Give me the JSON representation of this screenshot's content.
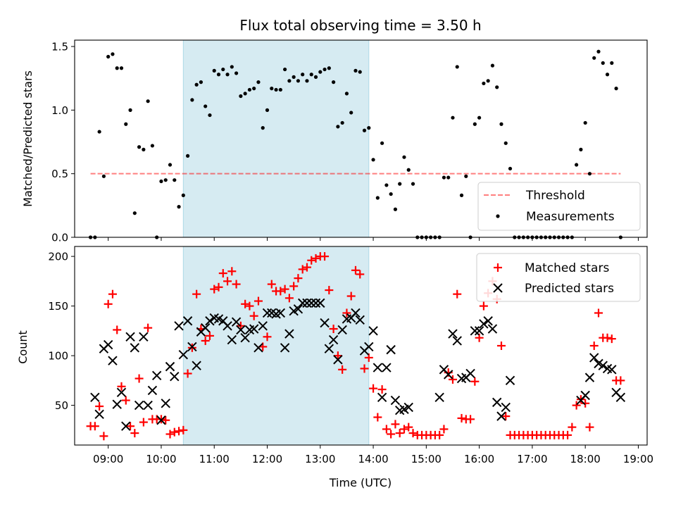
{
  "chart_data": [
    {
      "type": "scatter",
      "title": "Flux total observing time = 3.50 h",
      "xlabel": "",
      "ylabel": "Matched/Predicted stars",
      "xlim": [
        "08:22",
        "19:10"
      ],
      "ylim": [
        0,
        1.55
      ],
      "yticks": [
        0.0,
        0.5,
        1.0,
        1.5
      ],
      "ytick_labels": [
        "0.0",
        "0.5",
        "1.0",
        "1.5"
      ],
      "shaded_interval": [
        "10:25",
        "13:55"
      ],
      "legend": {
        "placement": "lower-right",
        "entries": [
          "Threshold",
          "Measurements"
        ]
      },
      "threshold": {
        "name": "Threshold",
        "x": [
          "08:40",
          "18:40"
        ],
        "y": 0.5
      },
      "series": [
        {
          "name": "Measurements",
          "x": [
            "08:40",
            "08:45",
            "08:50",
            "08:55",
            "09:00",
            "09:05",
            "09:10",
            "09:15",
            "09:20",
            "09:25",
            "09:30",
            "09:35",
            "09:40",
            "09:45",
            "09:50",
            "09:55",
            "10:00",
            "10:05",
            "10:10",
            "10:15",
            "10:20",
            "10:25",
            "10:30",
            "10:35",
            "10:40",
            "10:45",
            "10:50",
            "10:55",
            "11:00",
            "11:05",
            "11:10",
            "11:15",
            "11:20",
            "11:25",
            "11:30",
            "11:35",
            "11:40",
            "11:45",
            "11:50",
            "11:55",
            "12:00",
            "12:05",
            "12:10",
            "12:15",
            "12:20",
            "12:25",
            "12:30",
            "12:35",
            "12:40",
            "12:45",
            "12:50",
            "12:55",
            "13:00",
            "13:05",
            "13:10",
            "13:15",
            "13:20",
            "13:25",
            "13:30",
            "13:35",
            "13:40",
            "13:45",
            "13:50",
            "13:55",
            "14:00",
            "14:05",
            "14:10",
            "14:15",
            "14:20",
            "14:25",
            "14:30",
            "14:35",
            "14:40",
            "14:45",
            "14:50",
            "14:55",
            "15:00",
            "15:05",
            "15:10",
            "15:15",
            "15:20",
            "15:25",
            "15:30",
            "15:35",
            "15:40",
            "15:45",
            "15:50",
            "15:55",
            "16:00",
            "16:05",
            "16:10",
            "16:15",
            "16:20",
            "16:25",
            "16:30",
            "16:35",
            "16:40",
            "16:45",
            "16:50",
            "16:55",
            "17:00",
            "17:05",
            "17:10",
            "17:15",
            "17:20",
            "17:25",
            "17:30",
            "17:35",
            "17:40",
            "17:45",
            "17:50",
            "17:55",
            "18:00",
            "18:05",
            "18:10",
            "18:15",
            "18:20",
            "18:25",
            "18:30",
            "18:35",
            "18:40"
          ],
          "y": [
            0.0,
            0.0,
            0.83,
            0.48,
            1.42,
            1.44,
            1.33,
            1.33,
            0.89,
            1.0,
            0.19,
            0.71,
            0.69,
            1.07,
            0.72,
            0.0,
            0.44,
            0.45,
            0.57,
            0.45,
            0.24,
            0.33,
            0.64,
            1.08,
            1.2,
            1.22,
            1.03,
            0.96,
            1.31,
            1.28,
            1.32,
            1.28,
            1.34,
            1.29,
            1.11,
            1.13,
            1.16,
            1.17,
            1.22,
            0.86,
            1.0,
            1.17,
            1.16,
            1.16,
            1.32,
            1.23,
            1.26,
            1.23,
            1.28,
            1.23,
            1.28,
            1.26,
            1.3,
            1.32,
            1.33,
            1.22,
            0.87,
            0.9,
            1.13,
            0.98,
            1.31,
            1.3,
            0.84,
            0.86,
            0.61,
            0.31,
            0.74,
            0.41,
            0.34,
            0.22,
            0.42,
            0.63,
            0.53,
            0.42,
            0.0,
            0.0,
            0.0,
            0.0,
            0.0,
            0.0,
            0.47,
            0.47,
            0.94,
            1.34,
            0.33,
            0.48,
            0.0,
            0.89,
            0.94,
            1.21,
            1.23,
            1.35,
            1.18,
            0.89,
            0.74,
            0.54,
            0.0,
            0.0,
            0.0,
            0.0,
            0.0,
            0.0,
            0.0,
            0.0,
            0.0,
            0.0,
            0.0,
            0.0,
            0.0,
            0.0,
            0.57,
            0.69,
            0.9,
            0.5,
            1.41,
            1.46,
            1.37,
            1.28,
            1.37,
            1.17,
            0.0
          ]
        }
      ]
    },
    {
      "type": "scatter",
      "title": "",
      "xlabel": "Time (UTC)",
      "ylabel": "Count",
      "xlim": [
        "08:22",
        "19:10"
      ],
      "ylim": [
        10,
        210
      ],
      "yticks": [
        50,
        100,
        150,
        200
      ],
      "ytick_labels": [
        "50",
        "100",
        "150",
        "200"
      ],
      "xticks": [
        "09:00",
        "10:00",
        "11:00",
        "12:00",
        "13:00",
        "14:00",
        "15:00",
        "16:00",
        "17:00",
        "18:00",
        "19:00"
      ],
      "shaded_interval": [
        "10:25",
        "13:55"
      ],
      "legend": {
        "placement": "upper-right",
        "entries": [
          "Matched stars",
          "Predicted stars"
        ]
      },
      "series": [
        {
          "name": "Matched stars",
          "x": [
            "08:40",
            "08:45",
            "08:50",
            "08:55",
            "09:00",
            "09:05",
            "09:10",
            "09:15",
            "09:20",
            "09:25",
            "09:30",
            "09:35",
            "09:40",
            "09:45",
            "09:50",
            "09:55",
            "10:00",
            "10:05",
            "10:10",
            "10:15",
            "10:20",
            "10:25",
            "10:30",
            "10:35",
            "10:40",
            "10:45",
            "10:50",
            "10:55",
            "11:00",
            "11:05",
            "11:10",
            "11:15",
            "11:20",
            "11:25",
            "11:30",
            "11:35",
            "11:40",
            "11:45",
            "11:50",
            "11:55",
            "12:00",
            "12:05",
            "12:10",
            "12:15",
            "12:20",
            "12:25",
            "12:30",
            "12:35",
            "12:40",
            "12:45",
            "12:50",
            "12:55",
            "13:00",
            "13:05",
            "13:10",
            "13:15",
            "13:20",
            "13:25",
            "13:30",
            "13:35",
            "13:40",
            "13:45",
            "13:50",
            "13:55",
            "14:00",
            "14:05",
            "14:10",
            "14:15",
            "14:20",
            "14:25",
            "14:30",
            "14:35",
            "14:40",
            "14:45",
            "14:50",
            "14:55",
            "15:00",
            "15:05",
            "15:10",
            "15:15",
            "15:20",
            "15:25",
            "15:30",
            "15:35",
            "15:40",
            "15:45",
            "15:50",
            "15:55",
            "16:00",
            "16:05",
            "16:10",
            "16:15",
            "16:20",
            "16:25",
            "16:30",
            "16:35",
            "16:40",
            "16:45",
            "16:50",
            "16:55",
            "17:00",
            "17:05",
            "17:10",
            "17:15",
            "17:20",
            "17:25",
            "17:30",
            "17:35",
            "17:40",
            "17:45",
            "17:50",
            "17:55",
            "18:00",
            "18:05",
            "18:10",
            "18:15",
            "18:20",
            "18:25",
            "18:30",
            "18:35",
            "18:40"
          ],
          "y": [
            29,
            29,
            49,
            19,
            152,
            162,
            126,
            69,
            55,
            29,
            22,
            77,
            33,
            128,
            36,
            36,
            36,
            35,
            21,
            23,
            24,
            25,
            82,
            108,
            162,
            127,
            115,
            120,
            167,
            169,
            183,
            175,
            185,
            172,
            130,
            152,
            150,
            140,
            155,
            109,
            119,
            172,
            165,
            165,
            167,
            158,
            170,
            178,
            187,
            189,
            196,
            198,
            200,
            200,
            166,
            127,
            100,
            86,
            143,
            160,
            186,
            182,
            87,
            98,
            67,
            38,
            66,
            26,
            21,
            31,
            22,
            26,
            28,
            22,
            20,
            20,
            20,
            20,
            20,
            20,
            26,
            83,
            76,
            162,
            37,
            36,
            36,
            74,
            118,
            150,
            163,
            175,
            157,
            110,
            39,
            20,
            20,
            20,
            20,
            20,
            20,
            20,
            20,
            20,
            20,
            20,
            20,
            20,
            20,
            28,
            50,
            56,
            52,
            28,
            110,
            143,
            118,
            118,
            117,
            75,
            75
          ]
        },
        {
          "name": "Predicted stars",
          "x": [
            "08:45",
            "08:50",
            "08:55",
            "09:00",
            "09:05",
            "09:10",
            "09:15",
            "09:20",
            "09:25",
            "09:30",
            "09:35",
            "09:40",
            "09:45",
            "09:50",
            "09:55",
            "10:00",
            "10:05",
            "10:10",
            "10:15",
            "10:20",
            "10:25",
            "10:30",
            "10:35",
            "10:40",
            "10:45",
            "10:50",
            "10:55",
            "11:00",
            "11:05",
            "11:10",
            "11:15",
            "11:20",
            "11:25",
            "11:30",
            "11:35",
            "11:40",
            "11:45",
            "11:50",
            "11:55",
            "12:00",
            "12:05",
            "12:10",
            "12:15",
            "12:20",
            "12:25",
            "12:30",
            "12:35",
            "12:40",
            "12:45",
            "12:50",
            "12:55",
            "13:00",
            "13:05",
            "13:10",
            "13:15",
            "13:20",
            "13:25",
            "13:30",
            "13:35",
            "13:40",
            "13:45",
            "13:50",
            "13:55",
            "14:00",
            "14:05",
            "14:10",
            "14:15",
            "14:20",
            "14:25",
            "14:30",
            "14:35",
            "14:40",
            "15:15",
            "15:20",
            "15:25",
            "15:30",
            "15:35",
            "15:40",
            "15:45",
            "15:50",
            "15:55",
            "16:00",
            "16:05",
            "16:10",
            "16:15",
            "16:20",
            "16:25",
            "16:30",
            "16:35",
            "17:55",
            "18:00",
            "18:05",
            "18:10",
            "18:15",
            "18:20",
            "18:25",
            "18:30",
            "18:35",
            "18:40"
          ],
          "y": [
            58,
            41,
            107,
            111,
            95,
            51,
            63,
            29,
            119,
            108,
            50,
            119,
            50,
            65,
            80,
            35,
            52,
            89,
            79,
            130,
            101,
            135,
            109,
            90,
            124,
            128,
            135,
            138,
            137,
            135,
            130,
            116,
            134,
            126,
            118,
            126,
            127,
            108,
            130,
            143,
            143,
            142,
            143,
            108,
            122,
            145,
            147,
            153,
            153,
            153,
            153,
            153,
            133,
            107,
            116,
            96,
            126,
            137,
            138,
            143,
            136,
            105,
            109,
            125,
            88,
            58,
            88,
            106,
            55,
            45,
            46,
            48,
            58,
            86,
            81,
            122,
            115,
            77,
            78,
            82,
            125,
            125,
            132,
            135,
            127,
            53,
            39,
            48,
            75,
            55,
            60,
            78,
            98,
            92,
            90,
            87,
            86,
            63,
            58
          ]
        }
      ]
    }
  ]
}
